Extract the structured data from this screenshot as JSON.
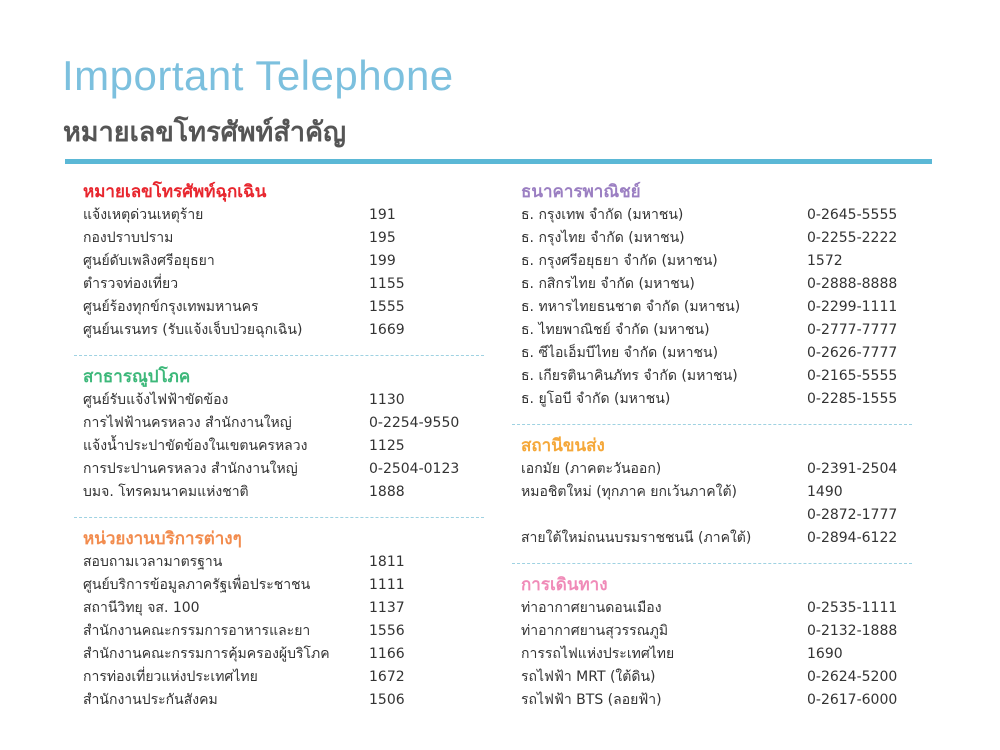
{
  "header": {
    "title": "Important Telephone",
    "subtitle": "หมายเลขโทรศัพท์สำคัญ",
    "accent": "#5bb8d6"
  },
  "columns": [
    {
      "sections": [
        {
          "title": "หมายเลขโทรศัพท์ฉุกเฉิน",
          "color": "#e8262e",
          "rows": [
            {
              "name": "แจ้งเหตุด่วนเหตุร้าย",
              "number": "191"
            },
            {
              "name": "กองปราบปราม",
              "number": "195"
            },
            {
              "name": "ศูนย์ดับเพลิงศรีอยุธยา",
              "number": "199"
            },
            {
              "name": "ตำรวจท่องเที่ยว",
              "number": "1155"
            },
            {
              "name": "ศูนย์ร้องทุกข์กรุงเทพมหานคร",
              "number": "1555"
            },
            {
              "name": "ศูนย์นเรนทร (รับแจ้งเจ็บป่วยฉุกเฉิน)",
              "number": "1669"
            }
          ]
        },
        {
          "title": "สาธารณูปโภค",
          "color": "#3db87a",
          "rows": [
            {
              "name": "ศูนย์รับแจ้งไฟฟ้าขัดข้อง",
              "number": "1130"
            },
            {
              "name": "การไฟฟ้านครหลวง สำนักงานใหญ่",
              "number": "0-2254-9550"
            },
            {
              "name": "แจ้งน้ำประปาขัดข้องในเขตนครหลวง",
              "number": "1125"
            },
            {
              "name": "การประปานครหลวง สำนักงานใหญ่",
              "number": "0-2504-0123"
            },
            {
              "name": "บมจ. โทรคมนาคมแห่งชาติ",
              "number": "1888"
            }
          ]
        },
        {
          "title": "หน่วยงานบริการต่างๆ",
          "color": "#f28c4e",
          "rows": [
            {
              "name": "สอบถามเวลามาตรฐาน",
              "number": "1811"
            },
            {
              "name": "ศูนย์บริการข้อมูลภาครัฐเพื่อประชาชน",
              "number": "1111"
            },
            {
              "name": "สถานีวิทยุ จส. 100",
              "number": "1137"
            },
            {
              "name": "สำนักงานคณะกรรมการอาหารและยา",
              "number": "1556"
            },
            {
              "name": "สำนักงานคณะกรรมการคุ้มครองผู้บริโภค",
              "number": "1166"
            },
            {
              "name": "การท่องเที่ยวแห่งประเทศไทย",
              "number": "1672"
            },
            {
              "name": "สำนักงานประกันสังคม",
              "number": "1506"
            }
          ]
        }
      ]
    },
    {
      "sections": [
        {
          "title": "ธนาคารพาณิชย์",
          "color": "#9b7fc2",
          "rows": [
            {
              "name": "ธ. กรุงเทพ จำกัด (มหาชน)",
              "number": "0-2645-5555"
            },
            {
              "name": "ธ. กรุงไทย จำกัด (มหาชน)",
              "number": "0-2255-2222"
            },
            {
              "name": "ธ. กรุงศรีอยุธยา จำกัด (มหาชน)",
              "number": "1572"
            },
            {
              "name": "ธ. กสิกรไทย จำกัด (มหาชน)",
              "number": "0-2888-8888"
            },
            {
              "name": "ธ. ทหารไทยธนชาต จำกัด (มหาชน)",
              "number": "0-2299-1111"
            },
            {
              "name": "ธ. ไทยพาณิชย์ จำกัด (มหาชน)",
              "number": "0-2777-7777"
            },
            {
              "name": "ธ. ซีไอเอ็มบีไทย จำกัด (มหาชน)",
              "number": "0-2626-7777"
            },
            {
              "name": "ธ. เกียรตินาคินภัทร จำกัด (มหาชน)",
              "number": "0-2165-5555"
            },
            {
              "name": "ธ. ยูโอบี จำกัด (มหาชน)",
              "number": "0-2285-1555"
            }
          ]
        },
        {
          "title": "สถานีขนส่ง",
          "color": "#f5a83a",
          "rows": [
            {
              "name": "เอกมัย (ภาคตะวันออก)",
              "number": "0-2391-2504"
            },
            {
              "name": "หมอชิตใหม่ (ทุกภาค ยกเว้นภาคใต้)",
              "number": "1490"
            },
            {
              "name": "",
              "number": "0-2872-1777"
            },
            {
              "name": "สายใต้ใหม่ถนนบรมราชชนนี (ภาคใต้)",
              "number": "0-2894-6122"
            }
          ]
        },
        {
          "title": "การเดินทาง",
          "color": "#f08bb8",
          "rows": [
            {
              "name": "ท่าอากาศยานดอนเมือง",
              "number": "0-2535-1111"
            },
            {
              "name": "ท่าอากาศยานสุวรรณภูมิ",
              "number": "0-2132-1888"
            },
            {
              "name": "การรถไฟแห่งประเทศไทย",
              "number": "1690"
            },
            {
              "name": "รถไฟฟ้า MRT (ใต้ดิน)",
              "number": "0-2624-5200"
            },
            {
              "name": "รถไฟฟ้า BTS (ลอยฟ้า)",
              "number": "0-2617-6000"
            }
          ]
        }
      ]
    }
  ]
}
